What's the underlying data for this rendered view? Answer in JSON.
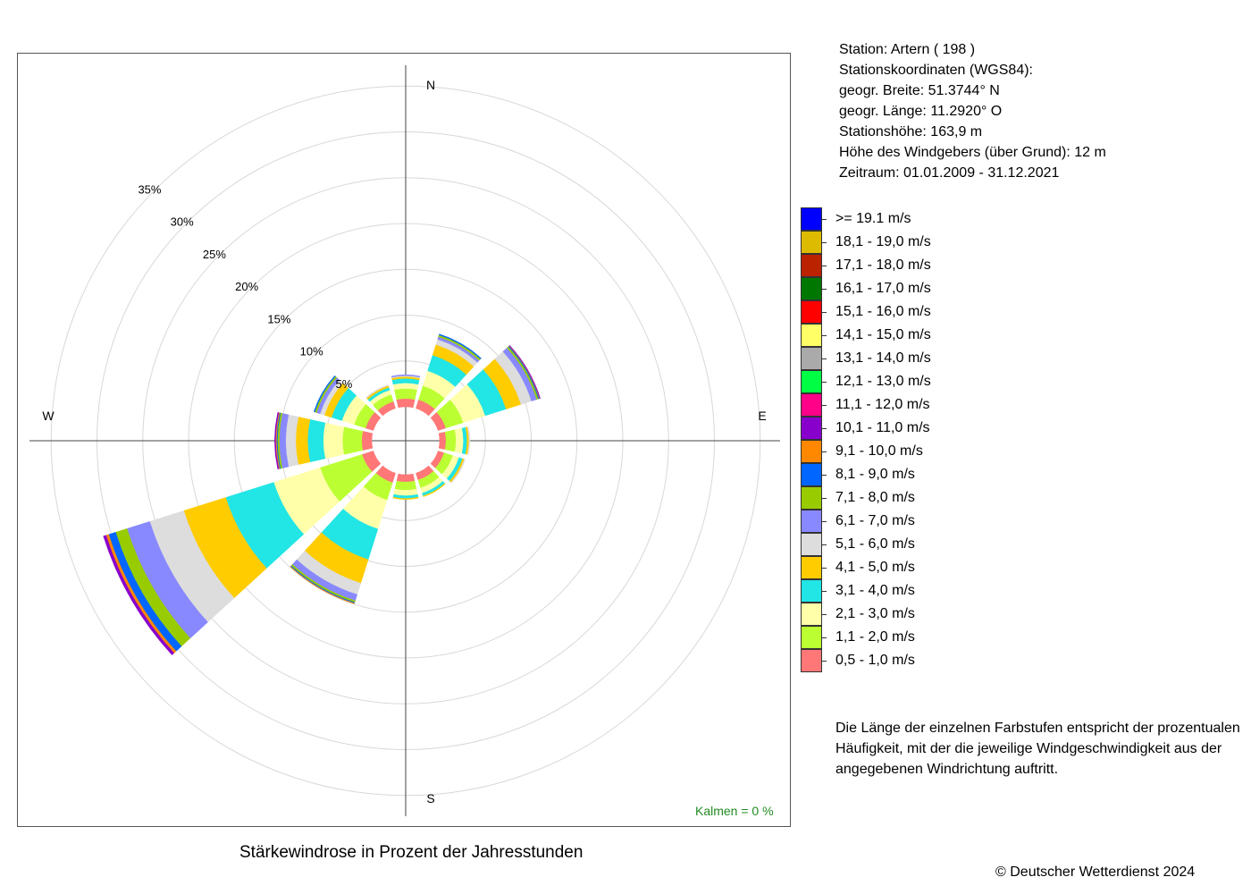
{
  "station": {
    "line1": "Station:  Artern  ( 198 )",
    "line2": "Stationskoordinaten (WGS84):",
    "line3": "geogr. Breite: 51.3744° N",
    "line4": "geogr. Länge: 11.2920° O",
    "line5": "Stationshöhe: 163,9 m",
    "line6": "Höhe des Windgebers (über Grund): 12 m",
    "line7": "Zeitraum: 01.01.2009 - 31.12.2021"
  },
  "legend": [
    {
      "label": ">= 19.1 m/s",
      "color": "#0000FF"
    },
    {
      "label": "18,1 - 19,0 m/s",
      "color": "#DDBB00"
    },
    {
      "label": "17,1 - 18,0 m/s",
      "color": "#BB2200"
    },
    {
      "label": "16,1 - 17,0 m/s",
      "color": "#007700"
    },
    {
      "label": "15,1 - 16,0 m/s",
      "color": "#FF0000"
    },
    {
      "label": "14,1 - 15,0 m/s",
      "color": "#FFFF66"
    },
    {
      "label": "13,1 - 14,0 m/s",
      "color": "#AAAAAA"
    },
    {
      "label": "12,1 - 13,0 m/s",
      "color": "#00FF44"
    },
    {
      "label": "11,1 - 12,0 m/s",
      "color": "#FF0088"
    },
    {
      "label": "10,1 - 11,0 m/s",
      "color": "#8800CC"
    },
    {
      "label": "9,1 - 10,0 m/s",
      "color": "#FF8800"
    },
    {
      "label": "8,1 - 9,0 m/s",
      "color": "#0066FF"
    },
    {
      "label": "7,1 - 8,0 m/s",
      "color": "#99CC00"
    },
    {
      "label": "6,1 - 7,0 m/s",
      "color": "#8888FF"
    },
    {
      "label": "5,1 - 6,0 m/s",
      "color": "#DDDDDD"
    },
    {
      "label": "4,1 - 5,0 m/s",
      "color": "#FFCC00"
    },
    {
      "label": "3,1 - 4,0 m/s",
      "color": "#22E5E5"
    },
    {
      "label": "2,1 - 3,0 m/s",
      "color": "#FFFFAA"
    },
    {
      "label": "1,1 - 2,0 m/s",
      "color": "#BBFF33"
    },
    {
      "label": "0,5 - 1,0 m/s",
      "color": "#FF7777"
    }
  ],
  "note": "Die Länge der einzelnen Farbstufen entspricht der prozentualen Häufigkeit, mit der die jeweilige Windgeschwindigkeit aus der angegebenen Windrichtung auftritt.",
  "caption": "Stärkewindrose in Prozent der Jahresstunden",
  "copyright": "© Deutscher Wetterdienst  2024",
  "calm": "Kalmen  =  0 %",
  "chart_data": {
    "type": "wind-rose",
    "title": "Stärkewindrose in Prozent der Jahresstunden",
    "unit": "%",
    "rings": [
      5,
      10,
      15,
      20,
      25,
      30,
      35
    ],
    "ring_labels": [
      "5%",
      "10%",
      "15%",
      "20%",
      "25%",
      "30%",
      "35%"
    ],
    "directions": {
      "N": "N",
      "E": "E",
      "S": "S",
      "W": "W"
    },
    "bins": [
      "0,5 - 1,0 m/s",
      "1,1 - 2,0 m/s",
      "2,1 - 3,0 m/s",
      "3,1 - 4,0 m/s",
      "4,1 - 5,0 m/s",
      "5,1 - 6,0 m/s",
      "6,1 - 7,0 m/s",
      "7,1 - 8,0 m/s",
      "8,1 - 9,0 m/s",
      "9,1 - 10,0 m/s",
      "10,1 - 11,0 m/s",
      "11,1 - 12,0 m/s",
      "12,1 - 13,0 m/s",
      "13,1 - 14,0 m/s",
      "14,1 - 15,0 m/s",
      "15,1 - 16,0 m/s",
      "16,1 - 17,0 m/s",
      "17,1 - 18,0 m/s",
      "18,1 - 19,0 m/s",
      ">= 19.1 m/s"
    ],
    "sectors": [
      {
        "angle": 0,
        "values": [
          0.9,
          1.1,
          0.6,
          0.5,
          0.2,
          0.1,
          0.1
        ]
      },
      {
        "angle": 30,
        "values": [
          1.0,
          1.6,
          1.7,
          1.8,
          1.2,
          0.6,
          0.3,
          0.2,
          0.1
        ]
      },
      {
        "angle": 60,
        "values": [
          0.9,
          2.0,
          2.5,
          2.4,
          1.7,
          1.2,
          0.6,
          0.2,
          0.1,
          0.05,
          0.05
        ]
      },
      {
        "angle": 90,
        "values": [
          0.7,
          1.1,
          0.8,
          0.4,
          0.2,
          0.1
        ]
      },
      {
        "angle": 120,
        "values": [
          0.7,
          1.0,
          0.7,
          0.4,
          0.2,
          0.1
        ]
      },
      {
        "angle": 150,
        "values": [
          0.8,
          0.9,
          0.6,
          0.3,
          0.1
        ]
      },
      {
        "angle": 180,
        "values": [
          0.8,
          0.9,
          0.6,
          0.3,
          0.1
        ]
      },
      {
        "angle": 210,
        "values": [
          1.1,
          2.0,
          3.3,
          3.5,
          2.7,
          1.3,
          0.7,
          0.2,
          0.1,
          0.05
        ]
      },
      {
        "angle": 240,
        "values": [
          1.3,
          4.8,
          5.3,
          5.5,
          4.8,
          3.9,
          2.6,
          1.3,
          0.8,
          0.3,
          0.3
        ]
      },
      {
        "angle": 270,
        "values": [
          1.1,
          2.1,
          2.1,
          1.7,
          1.3,
          1.1,
          0.7,
          0.2,
          0.1,
          0.1,
          0.1
        ]
      },
      {
        "angle": 300,
        "values": [
          0.9,
          1.3,
          1.4,
          1.2,
          0.8,
          0.5,
          0.4,
          0.2,
          0.1
        ]
      },
      {
        "angle": 330,
        "values": [
          0.8,
          0.8,
          0.5,
          0.3,
          0.2,
          0.1
        ]
      }
    ],
    "grid": true
  }
}
